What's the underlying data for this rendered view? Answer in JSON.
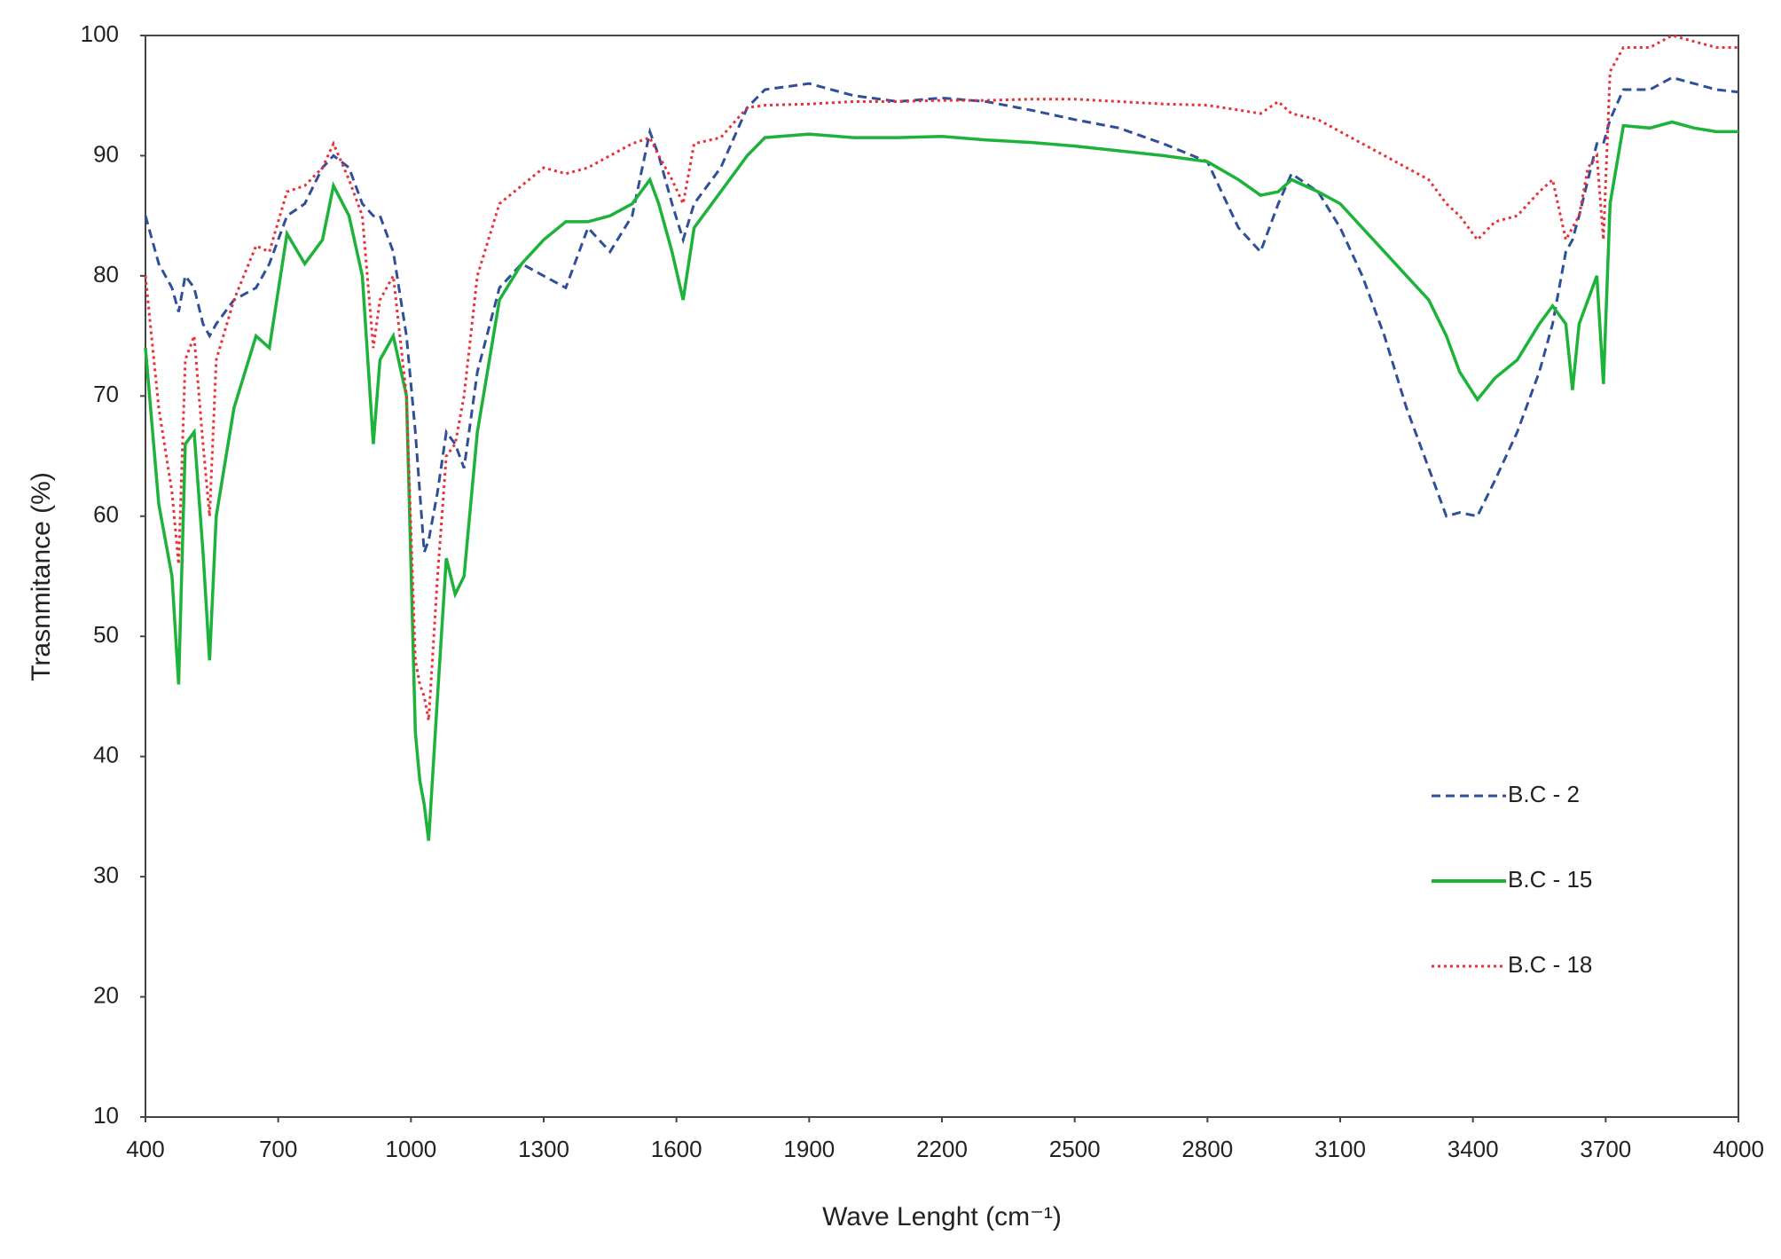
{
  "chart_data": {
    "type": "line",
    "x_label": "Wave Lenght (cm⁻¹)",
    "y_label": "Trasnmitance (%)",
    "x": [
      400,
      430,
      460,
      475,
      490,
      510,
      530,
      545,
      560,
      600,
      650,
      680,
      720,
      760,
      800,
      825,
      860,
      890,
      915,
      930,
      960,
      990,
      1010,
      1020,
      1030,
      1040,
      1060,
      1080,
      1100,
      1120,
      1150,
      1200,
      1250,
      1300,
      1350,
      1400,
      1450,
      1500,
      1540,
      1560,
      1590,
      1615,
      1640,
      1700,
      1760,
      1800,
      1900,
      2000,
      2100,
      2200,
      2300,
      2400,
      2500,
      2600,
      2700,
      2800,
      2870,
      2920,
      2960,
      2990,
      3050,
      3100,
      3150,
      3200,
      3250,
      3300,
      3340,
      3370,
      3410,
      3450,
      3500,
      3550,
      3580,
      3610,
      3625,
      3640,
      3660,
      3680,
      3695,
      3710,
      3740,
      3800,
      3850,
      3900,
      3950,
      4000
    ],
    "series": [
      {
        "name": "B.C - 2",
        "color": "#2f4f9a",
        "dash": "dashed",
        "values": [
          85,
          81,
          79,
          77,
          80,
          79,
          76,
          75,
          76,
          78,
          79,
          81,
          85,
          86,
          89,
          90,
          89,
          86,
          85,
          85,
          82,
          75,
          67,
          62,
          57,
          58,
          62,
          67,
          66,
          64,
          72,
          79,
          81,
          80,
          79,
          84,
          82,
          85,
          92,
          90,
          86,
          83,
          86,
          89,
          94,
          95.5,
          96,
          95,
          94.5,
          94.8,
          94.5,
          93.8,
          93,
          92.3,
          91,
          89.5,
          84,
          82,
          86,
          88.5,
          87,
          84,
          80,
          75,
          69,
          64,
          60,
          60.3,
          60,
          63,
          67,
          72,
          76,
          82,
          83,
          85,
          88,
          91,
          91,
          93,
          95.5,
          95.5,
          96.5,
          96,
          95.5,
          95.3
        ]
      },
      {
        "name": "B.C - 15",
        "color": "#1db33a",
        "dash": "solid",
        "values": [
          74,
          61,
          55,
          46,
          66,
          67,
          57,
          48,
          60,
          69,
          75,
          74,
          83.5,
          81,
          83,
          87.5,
          85,
          80,
          66,
          73,
          75,
          70,
          42,
          38,
          36,
          33,
          45,
          56.5,
          53.5,
          55,
          67,
          78,
          81,
          83,
          84.5,
          84.5,
          85,
          86,
          88,
          86,
          82,
          78,
          84,
          87,
          90,
          91.5,
          91.8,
          91.5,
          91.5,
          91.6,
          91.3,
          91.1,
          90.8,
          90.4,
          90,
          89.5,
          88,
          86.7,
          87,
          88,
          87,
          86,
          84,
          82,
          80,
          78,
          75,
          72,
          69.7,
          71.5,
          73,
          76,
          77.5,
          76,
          70.5,
          76,
          78,
          80,
          71,
          86,
          92.5,
          92.3,
          92.8,
          92.3,
          92,
          92
        ]
      },
      {
        "name": "B.C - 18",
        "color": "#e8323a",
        "dash": "dotted",
        "values": [
          80,
          69,
          62,
          56,
          73,
          75,
          66,
          60,
          73,
          78,
          82.5,
          82,
          87,
          87.5,
          89,
          91,
          88,
          85,
          74,
          78,
          80,
          70,
          48,
          46,
          45,
          43,
          55,
          65,
          66,
          70,
          80,
          86,
          87.5,
          89,
          88.5,
          89,
          90,
          91,
          91.5,
          90,
          88,
          86,
          91,
          91.5,
          94,
          94.2,
          94.3,
          94.5,
          94.5,
          94.6,
          94.6,
          94.7,
          94.7,
          94.5,
          94.3,
          94.2,
          93.8,
          93.5,
          94.5,
          93.5,
          93,
          92,
          91,
          90,
          89,
          88,
          86,
          85,
          83,
          84.5,
          85,
          87,
          88,
          83,
          84,
          85,
          89,
          90,
          83,
          97,
          99,
          99,
          100,
          99.5,
          99,
          99
        ]
      }
    ],
    "xlim": [
      400,
      4000
    ],
    "xticks": [
      400,
      700,
      1000,
      1300,
      1600,
      1900,
      2200,
      2500,
      2800,
      3100,
      3400,
      3700,
      4000
    ],
    "ylim": [
      10,
      100
    ],
    "yticks": [
      10,
      20,
      30,
      40,
      50,
      60,
      70,
      80,
      90,
      100
    ],
    "grid": false,
    "legend": "lower right"
  }
}
